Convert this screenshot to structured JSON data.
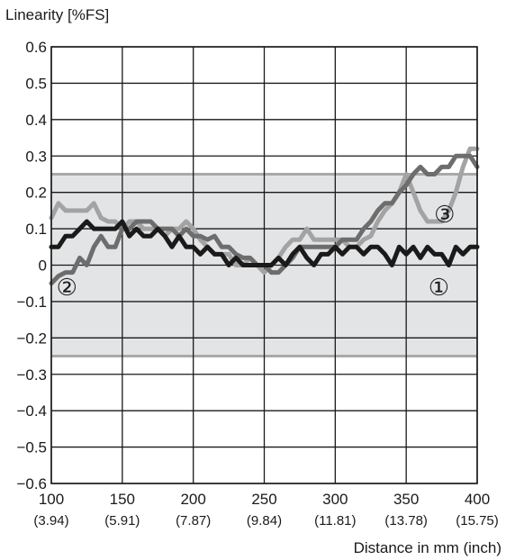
{
  "chart_data": {
    "type": "line",
    "ylabel": "Linearity [%FS]",
    "xlabel": "Distance in mm (inch)",
    "xlim": [
      100,
      400
    ],
    "ylim": [
      -0.6,
      0.6
    ],
    "x_ticks": [
      100,
      150,
      200,
      250,
      300,
      350,
      400
    ],
    "x_tick_labels": [
      "100",
      "150",
      "200",
      "250",
      "300",
      "350",
      "400"
    ],
    "x_tick_sublabels": [
      "(3.94)",
      "(5.91)",
      "(7.87)",
      "(9.84)",
      "(11.81)",
      "(13.78)",
      "(15.75)"
    ],
    "y_ticks": [
      0.6,
      0.5,
      0.4,
      0.3,
      0.2,
      0.1,
      0,
      -0.1,
      -0.2,
      -0.3,
      -0.4,
      -0.5,
      -0.6
    ],
    "y_tick_labels": [
      "0.6",
      "0.5",
      "0.4",
      "0.3",
      "0.2",
      "0.1",
      "0",
      "−0.1",
      "−0.2",
      "−0.3",
      "−0.4",
      "−0.5",
      "−0.6"
    ],
    "grid": true,
    "tolerance_band": {
      "low": -0.25,
      "high": 0.25,
      "fill": "#e3e4e6",
      "border": "#a9a9a9"
    },
    "series": [
      {
        "label": "①",
        "color": "#1a1a1a",
        "width": 5,
        "x": [
          100,
          105,
          110,
          115,
          120,
          125,
          130,
          135,
          140,
          145,
          150,
          155,
          160,
          165,
          170,
          175,
          180,
          185,
          190,
          195,
          200,
          205,
          210,
          215,
          220,
          225,
          230,
          235,
          240,
          245,
          250,
          255,
          260,
          265,
          270,
          275,
          280,
          285,
          290,
          295,
          300,
          305,
          310,
          315,
          320,
          325,
          330,
          335,
          340,
          345,
          350,
          355,
          360,
          365,
          370,
          375,
          380,
          385,
          390,
          395,
          400
        ],
        "y": [
          0.05,
          0.05,
          0.08,
          0.08,
          0.1,
          0.12,
          0.1,
          0.1,
          0.1,
          0.1,
          0.12,
          0.08,
          0.1,
          0.08,
          0.08,
          0.1,
          0.08,
          0.05,
          0.08,
          0.05,
          0.05,
          0.03,
          0.05,
          0.03,
          0.03,
          0.0,
          0.02,
          0.0,
          0.0,
          0.0,
          0.0,
          0.0,
          0.02,
          0.0,
          0.03,
          0.05,
          0.02,
          0.0,
          0.03,
          0.03,
          0.05,
          0.03,
          0.05,
          0.05,
          0.03,
          0.05,
          0.05,
          0.03,
          0.0,
          0.05,
          0.03,
          0.05,
          0.02,
          0.05,
          0.03,
          0.03,
          0.0,
          0.05,
          0.03,
          0.05,
          0.05
        ]
      },
      {
        "label": "②",
        "color": "#6d6d6d",
        "width": 5,
        "x": [
          100,
          105,
          110,
          115,
          120,
          125,
          130,
          135,
          140,
          145,
          150,
          155,
          160,
          165,
          170,
          175,
          180,
          185,
          190,
          195,
          200,
          205,
          210,
          215,
          220,
          225,
          230,
          235,
          240,
          245,
          250,
          255,
          260,
          265,
          270,
          275,
          280,
          285,
          290,
          295,
          300,
          305,
          310,
          315,
          320,
          325,
          330,
          335,
          340,
          345,
          350,
          355,
          360,
          365,
          370,
          375,
          380,
          385,
          390,
          395,
          400
        ],
        "y": [
          -0.05,
          -0.03,
          -0.02,
          -0.02,
          0.02,
          0.0,
          0.05,
          0.08,
          0.05,
          0.05,
          0.1,
          0.1,
          0.12,
          0.12,
          0.12,
          0.1,
          0.1,
          0.1,
          0.08,
          0.1,
          0.08,
          0.08,
          0.07,
          0.08,
          0.05,
          0.05,
          0.03,
          0.02,
          0.02,
          0.0,
          0.0,
          -0.02,
          -0.02,
          0.0,
          0.02,
          0.05,
          0.05,
          0.05,
          0.05,
          0.05,
          0.05,
          0.07,
          0.07,
          0.07,
          0.1,
          0.12,
          0.15,
          0.17,
          0.17,
          0.2,
          0.22,
          0.25,
          0.27,
          0.25,
          0.25,
          0.27,
          0.27,
          0.3,
          0.3,
          0.3,
          0.27
        ]
      },
      {
        "label": "③",
        "color": "#a3a3a3",
        "width": 5,
        "x": [
          100,
          105,
          110,
          115,
          120,
          125,
          130,
          135,
          140,
          145,
          150,
          155,
          160,
          165,
          170,
          175,
          180,
          185,
          190,
          195,
          200,
          205,
          210,
          215,
          220,
          225,
          230,
          235,
          240,
          245,
          250,
          255,
          260,
          265,
          270,
          275,
          280,
          285,
          290,
          295,
          300,
          305,
          310,
          315,
          320,
          325,
          330,
          335,
          340,
          345,
          350,
          355,
          360,
          365,
          370,
          375,
          380,
          385,
          390,
          395,
          400
        ],
        "y": [
          0.13,
          0.17,
          0.15,
          0.15,
          0.15,
          0.15,
          0.17,
          0.13,
          0.12,
          0.12,
          0.1,
          0.12,
          0.12,
          0.1,
          0.1,
          0.1,
          0.08,
          0.1,
          0.1,
          0.12,
          0.1,
          0.07,
          0.05,
          0.03,
          0.03,
          0.03,
          0.0,
          0.0,
          0.02,
          0.0,
          -0.02,
          0.0,
          0.02,
          0.05,
          0.07,
          0.07,
          0.1,
          0.07,
          0.07,
          0.07,
          0.07,
          0.07,
          0.05,
          0.05,
          0.07,
          0.08,
          0.12,
          0.15,
          0.17,
          0.2,
          0.25,
          0.2,
          0.15,
          0.12,
          0.12,
          0.12,
          0.15,
          0.2,
          0.27,
          0.32,
          0.32
        ]
      }
    ],
    "annotations": [
      "①",
      "②",
      "③"
    ]
  }
}
